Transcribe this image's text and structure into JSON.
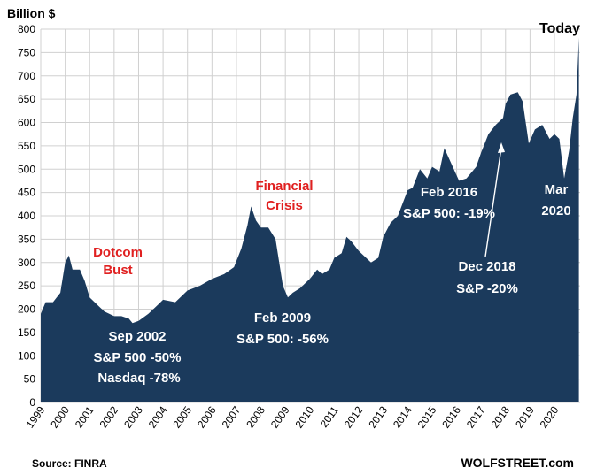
{
  "chart_data": {
    "type": "area",
    "ylabel": "Billion $",
    "ylim": [
      0,
      800
    ],
    "yticks": [
      0,
      50,
      100,
      150,
      200,
      250,
      300,
      350,
      400,
      450,
      500,
      550,
      600,
      650,
      700,
      750,
      800
    ],
    "xlim": [
      1999,
      2021.05
    ],
    "xticks": [
      "1999",
      "2000",
      "2001",
      "2002",
      "2003",
      "2004",
      "2005",
      "2006",
      "2007",
      "2008",
      "2009",
      "2010",
      "2011",
      "2012",
      "2013",
      "2014",
      "2015",
      "2016",
      "2017",
      "2018",
      "2019",
      "2020"
    ],
    "grid": true,
    "fill_color": "#1b3a5c",
    "x": [
      1999.0,
      1999.2,
      1999.5,
      1999.8,
      2000.0,
      2000.15,
      2000.3,
      2000.6,
      2000.8,
      2001.0,
      2001.3,
      2001.6,
      2002.0,
      2002.3,
      2002.6,
      2002.75,
      2003.0,
      2003.4,
      2003.8,
      2004.0,
      2004.5,
      2005.0,
      2005.5,
      2006.0,
      2006.5,
      2006.9,
      2007.2,
      2007.45,
      2007.6,
      2007.8,
      2008.0,
      2008.3,
      2008.6,
      2008.9,
      2009.1,
      2009.3,
      2009.6,
      2010.0,
      2010.3,
      2010.5,
      2010.8,
      2011.0,
      2011.3,
      2011.5,
      2011.7,
      2012.0,
      2012.5,
      2012.8,
      2013.0,
      2013.3,
      2013.6,
      2014.0,
      2014.2,
      2014.5,
      2014.8,
      2015.0,
      2015.3,
      2015.5,
      2015.8,
      2016.1,
      2016.4,
      2016.8,
      2017.0,
      2017.3,
      2017.6,
      2017.9,
      2018.0,
      2018.2,
      2018.5,
      2018.7,
      2018.95,
      2019.2,
      2019.5,
      2019.8,
      2020.0,
      2020.2,
      2020.4,
      2020.6,
      2020.75,
      2020.9,
      2021.0
    ],
    "values": [
      190,
      215,
      215,
      235,
      300,
      315,
      285,
      285,
      260,
      225,
      210,
      195,
      185,
      185,
      180,
      170,
      175,
      190,
      210,
      220,
      215,
      240,
      250,
      265,
      275,
      290,
      330,
      380,
      420,
      390,
      375,
      375,
      350,
      250,
      225,
      235,
      245,
      265,
      285,
      275,
      285,
      310,
      320,
      355,
      345,
      325,
      300,
      310,
      355,
      385,
      400,
      455,
      460,
      500,
      480,
      505,
      495,
      545,
      510,
      475,
      480,
      505,
      535,
      575,
      595,
      610,
      640,
      660,
      665,
      645,
      555,
      585,
      595,
      565,
      575,
      565,
      480,
      540,
      610,
      660,
      782
    ]
  },
  "annotations": {
    "dotcom": [
      "Dotcom",
      "Bust"
    ],
    "financial": [
      "Financial",
      "Crisis"
    ],
    "sep2002": [
      "Sep 2002",
      "S&P 500 -50%",
      "Nasdaq -78%"
    ],
    "feb2009": [
      "Feb 2009",
      "S&P 500: -56%"
    ],
    "feb2016": [
      "Feb 2016",
      "S&P 500: -19%"
    ],
    "dec2018": [
      "Dec 2018",
      "S&P -20%"
    ],
    "mar2020": [
      "Mar",
      "2020"
    ],
    "today": "Today"
  },
  "source": "Source: FINRA",
  "brand": "WOLFSTREET.com"
}
